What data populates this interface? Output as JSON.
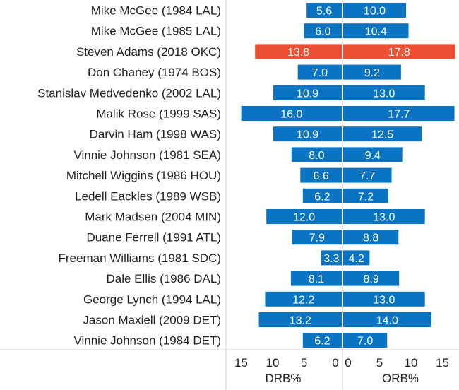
{
  "chart_data": {
    "type": "bar",
    "orientation": "horizontal-diverging",
    "players": [
      "Mike McGee (1984 LAL)",
      "Mike McGee (1985 LAL)",
      "Steven Adams (2018 OKC)",
      "Don Chaney (1974 BOS)",
      "Stanislav Medvedenko (2002 LAL)",
      "Malik Rose (1999 SAS)",
      "Darvin Ham (1998 WAS)",
      "Vinnie Johnson (1981 SEA)",
      "Mitchell Wiggins (1986 HOU)",
      "Ledell Eackles (1989 WSB)",
      "Mark Madsen (2004 MIN)",
      "Duane Ferrell (1991 ATL)",
      "Freeman Williams (1981 SDC)",
      "Dale Ellis (1986 DAL)",
      "George Lynch (1994 LAL)",
      "Jason Maxiell (2009 DET)",
      "Vinnie Johnson (1984 DET)"
    ],
    "series": [
      {
        "name": "DRB%",
        "values": [
          5.6,
          6.0,
          13.8,
          7.0,
          10.9,
          16.0,
          10.9,
          8.0,
          6.6,
          6.2,
          12.0,
          7.9,
          3.3,
          8.1,
          12.2,
          13.2,
          6.2
        ],
        "labels": [
          "5.6",
          "6.0",
          "13.8",
          "7.0",
          "10.9",
          "16.0",
          "10.9",
          "8.0",
          "6.6",
          "6.2",
          "12.0",
          "7.9",
          "3.3",
          "8.1",
          "12.2",
          "13.2",
          "6.2"
        ]
      },
      {
        "name": "ORB%",
        "values": [
          10.0,
          10.4,
          17.8,
          9.2,
          13.0,
          17.7,
          12.5,
          9.4,
          7.7,
          7.2,
          13.0,
          8.8,
          4.2,
          8.9,
          13.0,
          14.0,
          7.0
        ],
        "labels": [
          "10.0",
          "10.4",
          "17.8",
          "9.2",
          "13.0",
          "17.7",
          "12.5",
          "9.4",
          "7.7",
          "7.2",
          "13.0",
          "8.8",
          "4.2",
          "8.9",
          "13.0",
          "14.0",
          "7.0"
        ]
      }
    ],
    "highlight_index": 2,
    "xlabel_left": "DRB%",
    "xlabel_right": "ORB%",
    "xlim_left": [
      0,
      17.8
    ],
    "xlim_right": [
      0,
      17.8
    ],
    "ticks_left": [
      "15",
      "10",
      "5",
      "0"
    ],
    "ticks_right": [
      "0",
      "5",
      "10",
      "15"
    ],
    "colors": {
      "bar": "#0a74c2",
      "highlight": "#ec4f31",
      "grid": "#cccccc",
      "text": "#222222"
    },
    "grid": false
  }
}
